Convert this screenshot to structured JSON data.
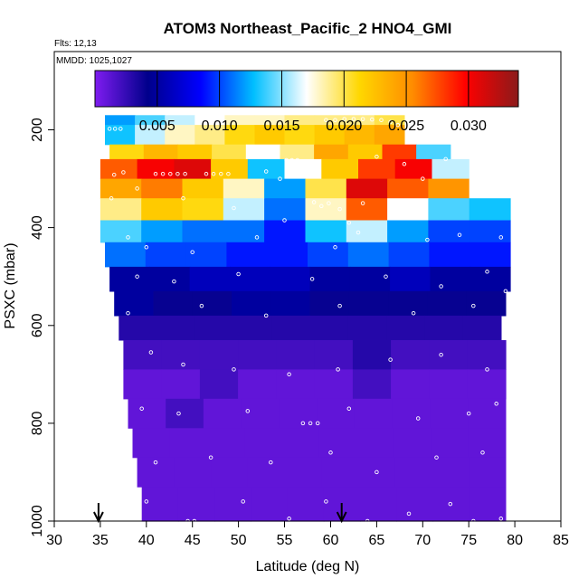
{
  "figure": {
    "title": "ATOM3 Northeast_Pacific_2 HNO4_GMI",
    "flights_label": "Flts: 12,13",
    "dates_label": "MMDD: 1025,1027"
  },
  "chart_data": {
    "type": "heatmap",
    "title": "ATOM3 Northeast_Pacific_2 HNO4_GMI",
    "xlabel": "Latitude (deg N)",
    "ylabel": "PSXC (mbar)",
    "xlim": [
      30,
      85
    ],
    "ylim": [
      1000,
      40
    ],
    "y_inverted": true,
    "x_ticks": [
      30,
      35,
      40,
      45,
      50,
      55,
      60,
      65,
      70,
      75,
      80,
      85
    ],
    "y_ticks": [
      200,
      400,
      600,
      800,
      1000
    ],
    "grid": false,
    "colorbar": {
      "placement": "top",
      "min": 0.0,
      "max": 0.034,
      "ticks": [
        0.005,
        0.01,
        0.015,
        0.02,
        0.025,
        0.03
      ],
      "tick_labels": [
        "0.005",
        "0.010",
        "0.015",
        "0.020",
        "0.025",
        "0.030"
      ],
      "colormap": [
        "#7f1cf0",
        "#00008b",
        "#0000ff",
        "#00bfff",
        "#ffffff",
        "#ffd700",
        "#ff8c00",
        "#ff0000",
        "#8b1a1a"
      ]
    },
    "arrows_latitude": [
      34.8,
      61.2
    ],
    "layers": [
      {
        "p_top": 170,
        "p_bot": 190,
        "lat_min": 35.5,
        "lat_max": 68.0,
        "values": [
          0.012,
          0.014,
          0.016,
          0.017,
          0.018,
          0.018,
          0.019,
          0.019,
          0.019,
          0.02
        ]
      },
      {
        "p_top": 190,
        "p_bot": 230,
        "lat_min": 35.5,
        "lat_max": 68.0,
        "values": [
          0.013,
          0.016,
          0.018,
          0.019,
          0.021,
          0.022,
          0.021,
          0.022,
          0.023,
          0.024
        ]
      },
      {
        "p_top": 230,
        "p_bot": 260,
        "lat_min": 36.0,
        "lat_max": 73.0,
        "values": [
          0.021,
          0.023,
          0.022,
          0.02,
          0.017,
          0.019,
          0.024,
          0.022,
          0.028,
          0.014
        ]
      },
      {
        "p_top": 260,
        "p_bot": 300,
        "lat_min": 35.0,
        "lat_max": 75.0,
        "values": [
          0.027,
          0.03,
          0.031,
          0.022,
          0.013,
          0.017,
          0.022,
          0.028,
          0.03,
          0.016
        ]
      },
      {
        "p_top": 300,
        "p_bot": 340,
        "lat_min": 35.0,
        "lat_max": 79.5,
        "values": [
          0.024,
          0.026,
          0.022,
          0.018,
          0.012,
          0.02,
          0.031,
          0.027,
          0.025,
          0.017
        ]
      },
      {
        "p_top": 340,
        "p_bot": 385,
        "lat_min": 35.0,
        "lat_max": 79.5,
        "values": [
          0.019,
          0.022,
          0.021,
          0.016,
          0.011,
          0.018,
          0.027,
          0.017,
          0.014,
          0.013
        ]
      },
      {
        "p_top": 385,
        "p_bot": 430,
        "lat_min": 35.0,
        "lat_max": 79.5,
        "values": [
          0.014,
          0.012,
          0.011,
          0.011,
          0.009,
          0.013,
          0.016,
          0.012,
          0.01,
          0.01
        ]
      },
      {
        "p_top": 430,
        "p_bot": 480,
        "lat_min": 35.5,
        "lat_max": 79.5,
        "values": [
          0.011,
          0.01,
          0.01,
          0.009,
          0.009,
          0.01,
          0.011,
          0.01,
          0.009,
          0.009
        ]
      },
      {
        "p_top": 480,
        "p_bot": 530,
        "lat_min": 36.0,
        "lat_max": 79.5,
        "values": [
          0.005,
          0.005,
          0.006,
          0.006,
          0.006,
          0.005,
          0.005,
          0.006,
          0.005,
          0.005
        ]
      },
      {
        "p_top": 530,
        "p_bot": 580,
        "lat_min": 36.5,
        "lat_max": 79.0,
        "values": [
          0.005,
          0.004,
          0.004,
          0.005,
          0.005,
          0.004,
          0.004,
          0.004,
          0.004,
          0.004
        ]
      },
      {
        "p_top": 580,
        "p_bot": 630,
        "lat_min": 37.0,
        "lat_max": 78.5,
        "values": [
          0.003,
          0.003,
          0.003,
          0.003,
          0.003,
          0.003,
          0.003,
          0.003,
          0.003,
          0.003
        ]
      },
      {
        "p_top": 630,
        "p_bot": 690,
        "lat_min": 37.5,
        "lat_max": 79.0,
        "values": [
          0.002,
          0.002,
          0.002,
          0.002,
          0.002,
          0.002,
          0.003,
          0.002,
          0.002,
          0.002
        ]
      },
      {
        "p_top": 690,
        "p_bot": 750,
        "lat_min": 37.5,
        "lat_max": 79.0,
        "values": [
          0.001,
          0.001,
          0.002,
          0.001,
          0.001,
          0.001,
          0.002,
          0.001,
          0.001,
          0.001
        ]
      },
      {
        "p_top": 750,
        "p_bot": 810,
        "lat_min": 38.0,
        "lat_max": 79.0,
        "values": [
          0.001,
          0.002,
          0.001,
          0.001,
          0.001,
          0.001,
          0.001,
          0.001,
          0.001,
          0.001
        ]
      },
      {
        "p_top": 810,
        "p_bot": 870,
        "lat_min": 38.5,
        "lat_max": 79.0,
        "values": [
          0.001,
          0.001,
          0.001,
          0.001,
          0.001,
          0.001,
          0.001,
          0.001,
          0.001,
          0.001
        ]
      },
      {
        "p_top": 870,
        "p_bot": 930,
        "lat_min": 39.0,
        "lat_max": 79.0,
        "values": [
          0.001,
          0.001,
          0.001,
          0.001,
          0.001,
          0.001,
          0.001,
          0.001,
          0.001,
          0.001
        ]
      },
      {
        "p_top": 930,
        "p_bot": 1000,
        "lat_min": 39.5,
        "lat_max": 79.0,
        "values": [
          0.001,
          0.001,
          0.001,
          0.001,
          0.001,
          0.001,
          0.001,
          0.001,
          0.001,
          0.001
        ]
      }
    ],
    "sample_points": [
      {
        "lat": 36.0,
        "p": 198
      },
      {
        "lat": 36.6,
        "p": 198
      },
      {
        "lat": 37.2,
        "p": 198
      },
      {
        "lat": 59.5,
        "p": 180
      },
      {
        "lat": 60.5,
        "p": 180
      },
      {
        "lat": 61.5,
        "p": 178
      },
      {
        "lat": 62.5,
        "p": 178
      },
      {
        "lat": 63.5,
        "p": 178
      },
      {
        "lat": 64.5,
        "p": 179
      },
      {
        "lat": 65.5,
        "p": 180
      },
      {
        "lat": 66.5,
        "p": 184
      },
      {
        "lat": 67.3,
        "p": 190
      },
      {
        "lat": 41.0,
        "p": 290
      },
      {
        "lat": 41.8,
        "p": 290
      },
      {
        "lat": 42.6,
        "p": 290
      },
      {
        "lat": 43.4,
        "p": 290
      },
      {
        "lat": 44.2,
        "p": 290
      },
      {
        "lat": 46.5,
        "p": 290
      },
      {
        "lat": 47.3,
        "p": 290
      },
      {
        "lat": 48.1,
        "p": 290
      },
      {
        "lat": 48.9,
        "p": 290
      },
      {
        "lat": 36.5,
        "p": 292
      },
      {
        "lat": 37.5,
        "p": 287
      },
      {
        "lat": 39.0,
        "p": 320
      },
      {
        "lat": 36.2,
        "p": 340
      },
      {
        "lat": 53.0,
        "p": 285
      },
      {
        "lat": 54.5,
        "p": 300
      },
      {
        "lat": 55.2,
        "p": 262
      },
      {
        "lat": 55.8,
        "p": 262
      },
      {
        "lat": 56.4,
        "p": 262
      },
      {
        "lat": 58.2,
        "p": 348
      },
      {
        "lat": 59.0,
        "p": 356
      },
      {
        "lat": 59.8,
        "p": 350
      },
      {
        "lat": 61.0,
        "p": 362
      },
      {
        "lat": 62.0,
        "p": 390
      },
      {
        "lat": 63.5,
        "p": 350
      },
      {
        "lat": 65.0,
        "p": 255
      },
      {
        "lat": 68.0,
        "p": 270
      },
      {
        "lat": 70.0,
        "p": 300
      },
      {
        "lat": 72.5,
        "p": 260
      },
      {
        "lat": 75.0,
        "p": 250
      },
      {
        "lat": 44.0,
        "p": 340
      },
      {
        "lat": 49.5,
        "p": 360
      },
      {
        "lat": 55.0,
        "p": 385
      },
      {
        "lat": 67.0,
        "p": 370
      },
      {
        "lat": 38.0,
        "p": 420
      },
      {
        "lat": 40.0,
        "p": 440
      },
      {
        "lat": 45.0,
        "p": 450
      },
      {
        "lat": 52.0,
        "p": 420
      },
      {
        "lat": 60.5,
        "p": 440
      },
      {
        "lat": 63.0,
        "p": 410
      },
      {
        "lat": 70.5,
        "p": 425
      },
      {
        "lat": 74.0,
        "p": 415
      },
      {
        "lat": 78.5,
        "p": 420
      },
      {
        "lat": 39.0,
        "p": 500
      },
      {
        "lat": 43.0,
        "p": 510
      },
      {
        "lat": 50.0,
        "p": 495
      },
      {
        "lat": 58.0,
        "p": 505
      },
      {
        "lat": 66.0,
        "p": 500
      },
      {
        "lat": 72.0,
        "p": 520
      },
      {
        "lat": 77.0,
        "p": 490
      },
      {
        "lat": 79.0,
        "p": 530
      },
      {
        "lat": 38.0,
        "p": 575
      },
      {
        "lat": 46.0,
        "p": 560
      },
      {
        "lat": 53.0,
        "p": 580
      },
      {
        "lat": 61.0,
        "p": 560
      },
      {
        "lat": 69.0,
        "p": 575
      },
      {
        "lat": 75.5,
        "p": 560
      },
      {
        "lat": 40.5,
        "p": 655
      },
      {
        "lat": 44.0,
        "p": 680
      },
      {
        "lat": 49.5,
        "p": 690
      },
      {
        "lat": 55.5,
        "p": 700
      },
      {
        "lat": 60.8,
        "p": 690
      },
      {
        "lat": 66.5,
        "p": 670
      },
      {
        "lat": 72.0,
        "p": 660
      },
      {
        "lat": 77.0,
        "p": 690
      },
      {
        "lat": 39.5,
        "p": 770
      },
      {
        "lat": 43.5,
        "p": 780
      },
      {
        "lat": 51.0,
        "p": 775
      },
      {
        "lat": 57.0,
        "p": 800
      },
      {
        "lat": 57.8,
        "p": 800
      },
      {
        "lat": 58.6,
        "p": 800
      },
      {
        "lat": 62.0,
        "p": 770
      },
      {
        "lat": 69.5,
        "p": 790
      },
      {
        "lat": 75.0,
        "p": 780
      },
      {
        "lat": 78.0,
        "p": 760
      },
      {
        "lat": 41.0,
        "p": 880
      },
      {
        "lat": 47.0,
        "p": 870
      },
      {
        "lat": 53.5,
        "p": 880
      },
      {
        "lat": 60.0,
        "p": 860
      },
      {
        "lat": 65.0,
        "p": 900
      },
      {
        "lat": 71.5,
        "p": 870
      },
      {
        "lat": 76.5,
        "p": 860
      },
      {
        "lat": 40.0,
        "p": 960
      },
      {
        "lat": 44.5,
        "p": 1000
      },
      {
        "lat": 45.2,
        "p": 1000
      },
      {
        "lat": 50.5,
        "p": 960
      },
      {
        "lat": 55.5,
        "p": 995
      },
      {
        "lat": 59.5,
        "p": 960
      },
      {
        "lat": 64.0,
        "p": 1000
      },
      {
        "lat": 68.5,
        "p": 985
      },
      {
        "lat": 73.0,
        "p": 965
      },
      {
        "lat": 75.5,
        "p": 1000
      },
      {
        "lat": 78.5,
        "p": 995
      }
    ]
  }
}
